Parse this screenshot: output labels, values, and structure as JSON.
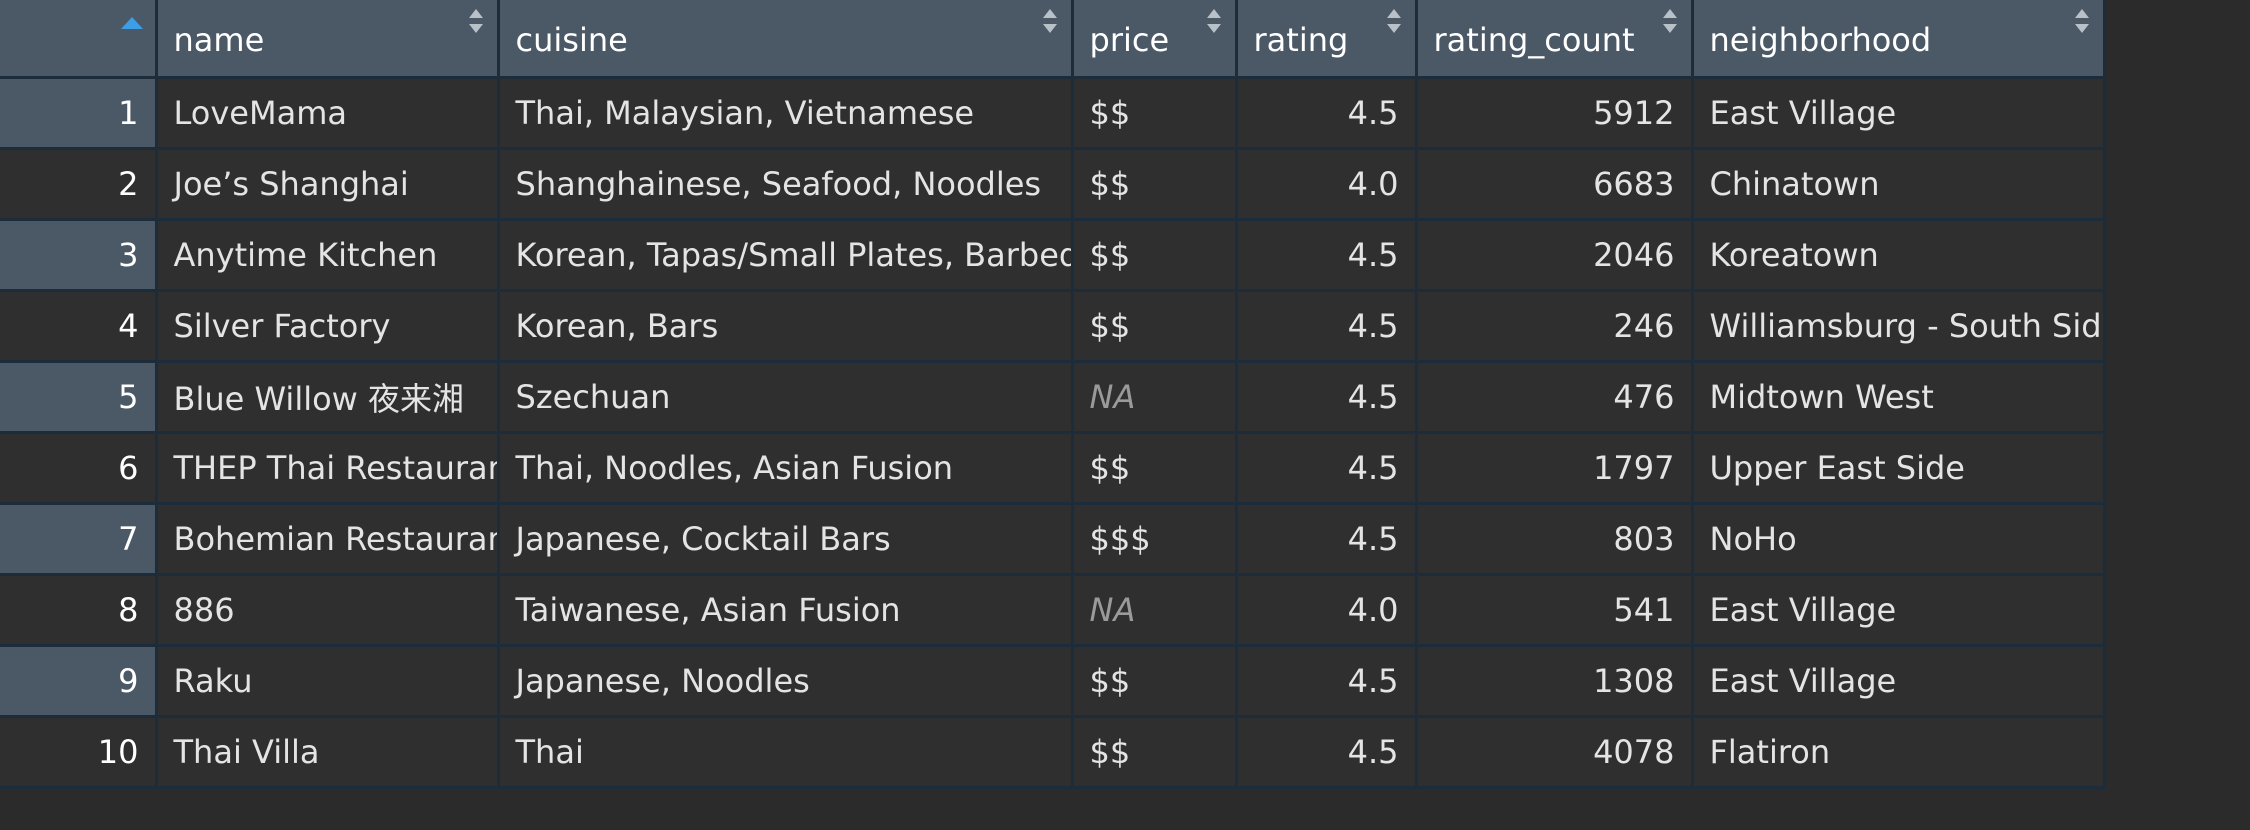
{
  "colors": {
    "header_bg": "#4b5866",
    "cell_bg": "#2f2f2f",
    "grid_line": "#1d2c3b",
    "sort_active": "#3d9ee8",
    "na_text": "#9a9a9a"
  },
  "columns": [
    "name",
    "cuisine",
    "price",
    "rating",
    "rating_count",
    "neighborhood"
  ],
  "rows": [
    {
      "n": "1",
      "name": "LoveMama",
      "cuisine": "Thai, Malaysian, Vietnamese",
      "price": "$$",
      "rating": "4.5",
      "rating_count": "5912",
      "neighborhood": "East Village"
    },
    {
      "n": "2",
      "name": "Joe’s Shanghai",
      "cuisine": "Shanghainese, Seafood, Noodles",
      "price": "$$",
      "rating": "4.0",
      "rating_count": "6683",
      "neighborhood": "Chinatown"
    },
    {
      "n": "3",
      "name": "Anytime Kitchen",
      "cuisine": "Korean, Tapas/Small Plates, Barbeque",
      "price": "$$",
      "rating": "4.5",
      "rating_count": "2046",
      "neighborhood": "Koreatown"
    },
    {
      "n": "4",
      "name": "Silver Factory",
      "cuisine": "Korean, Bars",
      "price": "$$",
      "rating": "4.5",
      "rating_count": "246",
      "neighborhood": "Williamsburg - South Side"
    },
    {
      "n": "5",
      "name": "Blue Willow 夜来湘",
      "cuisine": "Szechuan",
      "price": "NA",
      "rating": "4.5",
      "rating_count": "476",
      "neighborhood": "Midtown West"
    },
    {
      "n": "6",
      "name": "THEP Thai Restaurant",
      "cuisine": "Thai, Noodles, Asian Fusion",
      "price": "$$",
      "rating": "4.5",
      "rating_count": "1797",
      "neighborhood": "Upper East Side"
    },
    {
      "n": "7",
      "name": "Bohemian Restaurant",
      "cuisine": "Japanese, Cocktail Bars",
      "price": "$$$",
      "rating": "4.5",
      "rating_count": "803",
      "neighborhood": "NoHo"
    },
    {
      "n": "8",
      "name": "886",
      "cuisine": "Taiwanese, Asian Fusion",
      "price": "NA",
      "rating": "4.0",
      "rating_count": "541",
      "neighborhood": "East Village"
    },
    {
      "n": "9",
      "name": "Raku",
      "cuisine": "Japanese, Noodles",
      "price": "$$",
      "rating": "4.5",
      "rating_count": "1308",
      "neighborhood": "East Village"
    },
    {
      "n": "10",
      "name": "Thai Villa",
      "cuisine": "Thai",
      "price": "$$",
      "rating": "4.5",
      "rating_count": "4078",
      "neighborhood": "Flatiron"
    }
  ]
}
